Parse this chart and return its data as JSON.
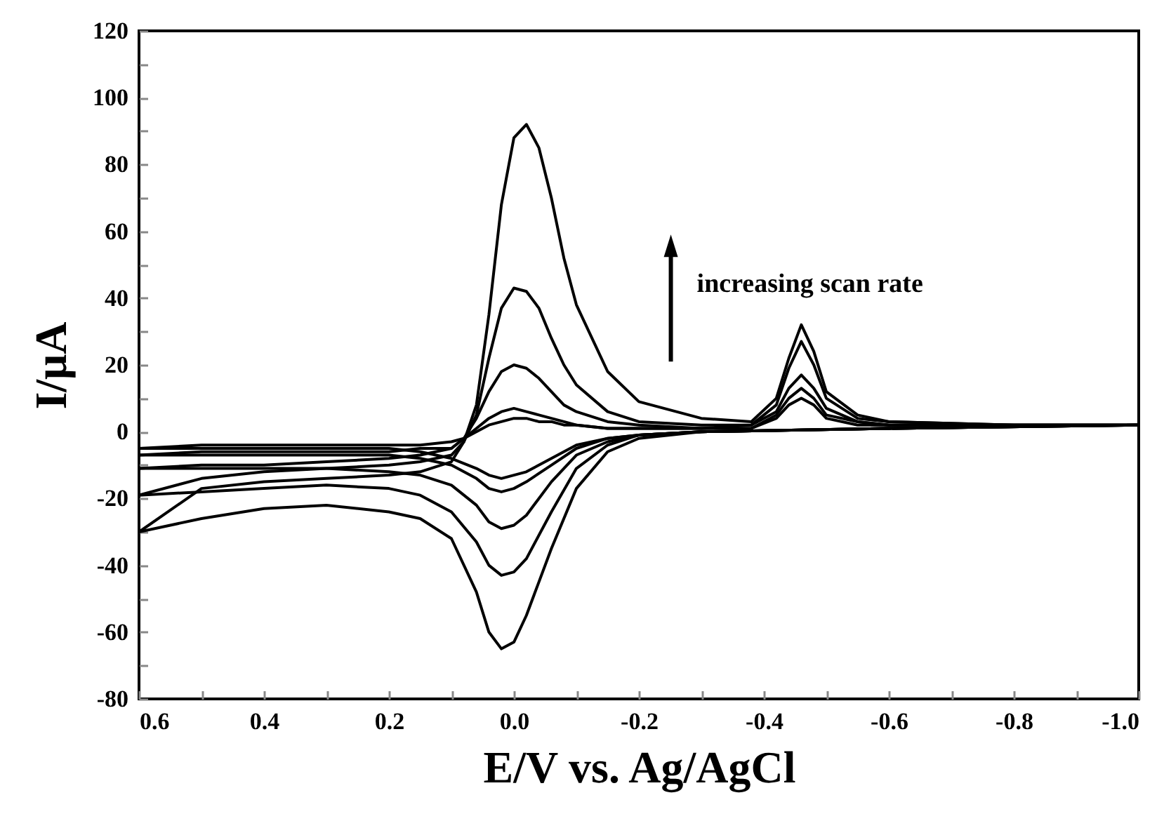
{
  "chart_data": {
    "type": "line",
    "xlabel": "E/V vs. Ag/AgCl",
    "ylabel": "I/μA",
    "annotations": [
      "increasing scan rate"
    ],
    "xlim": [
      0.6,
      -1.0
    ],
    "ylim": [
      -80,
      120
    ],
    "xticks": [
      {
        "value": 0.6,
        "label": "0.6"
      },
      {
        "value": 0.5,
        "label": null
      },
      {
        "value": 0.4,
        "label": "0.4"
      },
      {
        "value": 0.3,
        "label": null
      },
      {
        "value": 0.2,
        "label": "0.2"
      },
      {
        "value": 0.1,
        "label": null
      },
      {
        "value": 0,
        "label": "0.0"
      },
      {
        "value": -0.1,
        "label": null
      },
      {
        "value": -0.2,
        "label": "-0.2"
      },
      {
        "value": -0.3,
        "label": null
      },
      {
        "value": -0.4,
        "label": "-0.4"
      },
      {
        "value": -0.5,
        "label": null
      },
      {
        "value": -0.6,
        "label": "-0.6"
      },
      {
        "value": -0.7,
        "label": null
      },
      {
        "value": -0.8,
        "label": "-0.8"
      },
      {
        "value": -0.9,
        "label": null
      },
      {
        "value": -1.0,
        "label": "-1.0"
      }
    ],
    "yticks": [
      -80,
      {
        "value": -70,
        "label": null
      },
      -60,
      {
        "value": -50,
        "label": null
      },
      -40,
      {
        "value": -30,
        "label": null
      },
      -20,
      {
        "value": -10,
        "label": null
      },
      0,
      {
        "value": 10,
        "label": null
      },
      20,
      {
        "value": 30,
        "label": null
      },
      40,
      {
        "value": 50,
        "label": null
      },
      60,
      {
        "value": 70,
        "label": null
      },
      80,
      {
        "value": 90,
        "label": null
      },
      100,
      {
        "value": 110,
        "label": null
      },
      120
    ],
    "grid": false,
    "legend": false,
    "line_style": "solid",
    "series": [
      {
        "color": "#000000",
        "x": [
          0.6,
          0.5,
          0.4,
          0.3,
          0.2,
          0.15,
          0.1,
          0.08,
          0.06,
          0.04,
          0.02,
          0,
          -0.02,
          -0.04,
          -0.06,
          -0.08,
          -0.1,
          -0.15,
          -0.2,
          -0.3,
          -0.38,
          -0.42,
          -0.44,
          -0.46,
          -0.48,
          -0.5,
          -0.55,
          -0.6,
          -0.8,
          -1.0
        ],
        "values": [
          -5,
          -4,
          -4,
          -4,
          -4,
          -4,
          -3,
          -2,
          0,
          2,
          3,
          4,
          4,
          3,
          3,
          2,
          2,
          1,
          1,
          1,
          1,
          4,
          8,
          10,
          8,
          4,
          2,
          2,
          2,
          2
        ]
      },
      {
        "color": "#000000",
        "x": [
          -1.0,
          -0.6,
          -0.3,
          -0.2,
          -0.15,
          -0.1,
          -0.06,
          -0.02,
          0,
          0.02,
          0.04,
          0.06,
          0.1,
          0.15,
          0.2,
          0.3,
          0.4,
          0.5,
          0.6
        ],
        "values": [
          2,
          1,
          0,
          -1,
          -2,
          -4,
          -8,
          -12,
          -13,
          -14,
          -13,
          -11,
          -8,
          -6,
          -5,
          -5,
          -5,
          -5,
          -5
        ]
      },
      {
        "color": "#000000",
        "x": [
          0.6,
          0.5,
          0.4,
          0.3,
          0.2,
          0.15,
          0.1,
          0.08,
          0.06,
          0.04,
          0.02,
          0,
          -0.02,
          -0.04,
          -0.06,
          -0.08,
          -0.1,
          -0.15,
          -0.2,
          -0.3,
          -0.38,
          -0.42,
          -0.44,
          -0.46,
          -0.48,
          -0.5,
          -0.55,
          -0.6,
          -0.8,
          -1.0
        ],
        "values": [
          -7,
          -6,
          -6,
          -6,
          -6,
          -5,
          -5,
          -2,
          1,
          4,
          6,
          7,
          6,
          5,
          4,
          3,
          2,
          1,
          1,
          1,
          1,
          5,
          10,
          13,
          10,
          5,
          3,
          2,
          2,
          2
        ]
      },
      {
        "color": "#000000",
        "x": [
          -1.0,
          -0.6,
          -0.3,
          -0.2,
          -0.15,
          -0.1,
          -0.06,
          -0.02,
          0,
          0.02,
          0.04,
          0.06,
          0.1,
          0.15,
          0.2,
          0.3,
          0.4,
          0.5,
          0.6
        ],
        "values": [
          2,
          1,
          0,
          -1,
          -2,
          -5,
          -10,
          -15,
          -17,
          -18,
          -17,
          -14,
          -10,
          -8,
          -7,
          -7,
          -7,
          -7,
          -7
        ]
      },
      {
        "color": "#000000",
        "x": [
          0.6,
          0.5,
          0.4,
          0.3,
          0.2,
          0.15,
          0.1,
          0.08,
          0.06,
          0.04,
          0.02,
          0,
          -0.02,
          -0.04,
          -0.06,
          -0.08,
          -0.1,
          -0.15,
          -0.2,
          -0.3,
          -0.38,
          -0.42,
          -0.44,
          -0.46,
          -0.48,
          -0.5,
          -0.55,
          -0.6,
          -0.8,
          -1.0
        ],
        "values": [
          -11,
          -10,
          -10,
          -9,
          -8,
          -7,
          -5,
          -2,
          4,
          12,
          18,
          20,
          19,
          16,
          12,
          8,
          6,
          3,
          2,
          1,
          2,
          6,
          13,
          17,
          13,
          7,
          3,
          2,
          2,
          2
        ]
      },
      {
        "color": "#000000",
        "x": [
          -1.0,
          -0.6,
          -0.3,
          -0.2,
          -0.15,
          -0.1,
          -0.06,
          -0.02,
          0,
          0.02,
          0.04,
          0.06,
          0.1,
          0.15,
          0.2,
          0.3,
          0.4,
          0.5,
          0.6
        ],
        "values": [
          2,
          1,
          0,
          -1,
          -3,
          -7,
          -15,
          -25,
          -28,
          -29,
          -27,
          -22,
          -16,
          -13,
          -12,
          -11,
          -11,
          -11,
          -11
        ]
      },
      {
        "color": "#000000",
        "x": [
          0.6,
          0.5,
          0.4,
          0.3,
          0.2,
          0.15,
          0.1,
          0.08,
          0.06,
          0.04,
          0.02,
          0,
          -0.02,
          -0.04,
          -0.06,
          -0.08,
          -0.1,
          -0.15,
          -0.2,
          -0.3,
          -0.38,
          -0.42,
          -0.44,
          -0.46,
          -0.48,
          -0.5,
          -0.55,
          -0.6,
          -0.8,
          -1.0
        ],
        "values": [
          -19,
          -14,
          -12,
          -11,
          -10,
          -9,
          -7,
          -3,
          5,
          22,
          37,
          43,
          42,
          37,
          28,
          20,
          14,
          6,
          3,
          2,
          2,
          8,
          19,
          27,
          20,
          10,
          4,
          3,
          2,
          2
        ]
      },
      {
        "color": "#000000",
        "x": [
          -1.0,
          -0.6,
          -0.3,
          -0.2,
          -0.15,
          -0.1,
          -0.06,
          -0.02,
          0,
          0.02,
          0.04,
          0.06,
          0.1,
          0.15,
          0.2,
          0.3,
          0.4,
          0.5,
          0.6
        ],
        "values": [
          2,
          1,
          0,
          -1,
          -4,
          -11,
          -24,
          -38,
          -42,
          -43,
          -40,
          -33,
          -24,
          -19,
          -17,
          -16,
          -17,
          -18,
          -19
        ]
      },
      {
        "color": "#000000",
        "x": [
          0.6,
          0.5,
          0.4,
          0.3,
          0.2,
          0.15,
          0.1,
          0.08,
          0.06,
          0.04,
          0.02,
          0,
          -0.02,
          -0.04,
          -0.06,
          -0.08,
          -0.1,
          -0.15,
          -0.2,
          -0.3,
          -0.38,
          -0.42,
          -0.44,
          -0.46,
          -0.48,
          -0.5,
          -0.55,
          -0.6,
          -0.8,
          -1.0
        ],
        "values": [
          -30,
          -17,
          -15,
          -14,
          -13,
          -12,
          -9,
          -3,
          8,
          35,
          68,
          88,
          92,
          85,
          70,
          52,
          38,
          18,
          9,
          4,
          3,
          10,
          22,
          32,
          24,
          12,
          5,
          3,
          2,
          2
        ]
      },
      {
        "color": "#000000",
        "x": [
          -1.0,
          -0.6,
          -0.3,
          -0.2,
          -0.15,
          -0.1,
          -0.06,
          -0.02,
          0,
          0.02,
          0.04,
          0.06,
          0.1,
          0.15,
          0.2,
          0.3,
          0.4,
          0.5,
          0.6
        ],
        "values": [
          2,
          1,
          0,
          -2,
          -6,
          -17,
          -35,
          -55,
          -63,
          -65,
          -60,
          -48,
          -32,
          -26,
          -24,
          -22,
          -23,
          -26,
          -30
        ]
      }
    ]
  }
}
